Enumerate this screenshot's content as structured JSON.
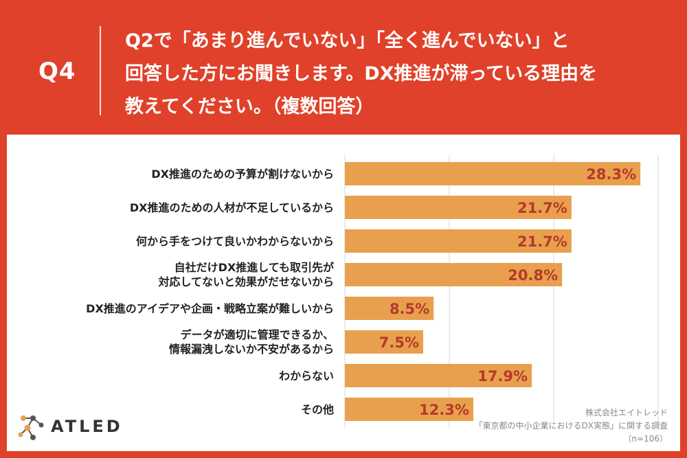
{
  "header": {
    "qnum": "Q4",
    "lines": [
      "Q2で「あまり進んでいない」「全く進んでいない」と",
      "回答した方にお聞きします。DX推進が滞っている理由を",
      "教えてください。（複数回答）"
    ]
  },
  "colors": {
    "background": "#e0412a",
    "bar": "#e9a04e",
    "value_text": "#b5392a",
    "grid": "#d6d6d6"
  },
  "chart_data": {
    "type": "bar",
    "orientation": "horizontal",
    "unit": "%",
    "grid": true,
    "xlim": [
      0,
      30
    ],
    "categories": [
      [
        "DX推進のための予算が割けないから"
      ],
      [
        "DX推進のための人材が不足しているから"
      ],
      [
        "何から手をつけて良いかわからないから"
      ],
      [
        "自社だけDX推進しても取引先が",
        "対応してないと効果がだせないから"
      ],
      [
        "DX推進のアイデアや企画・戦略立案が難しいから"
      ],
      [
        "データが適切に管理できるか、",
        "情報漏洩しないか不安があるから"
      ],
      [
        "わからない"
      ],
      [
        "その他"
      ]
    ],
    "values": [
      28.3,
      21.7,
      21.7,
      20.8,
      8.5,
      7.5,
      17.9,
      12.3
    ],
    "value_labels": [
      "28.3%",
      "21.7%",
      "21.7%",
      "20.8%",
      "8.5%",
      "7.5%",
      "17.9%",
      "12.3%"
    ]
  },
  "logo": {
    "name": "ATLED",
    "icon": "molecule-icon"
  },
  "source": {
    "lines": [
      "株式会社エイトレッド",
      "「東京都の中小企業におけるDX実態」に関する調査",
      "（n=106）"
    ]
  }
}
